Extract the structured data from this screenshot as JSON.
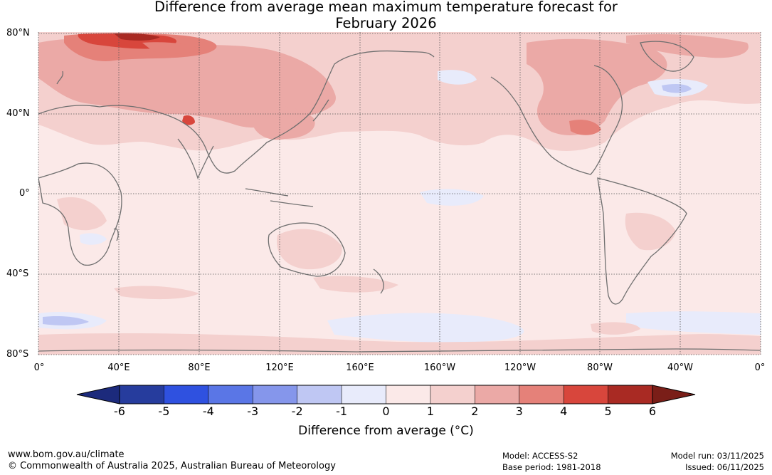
{
  "title": {
    "line1": "Difference from average mean maximum temperature forecast for",
    "line2": "February 2026"
  },
  "map": {
    "lat_labels": [
      "80°N",
      "40°N",
      "0°",
      "40°S",
      "80°S"
    ],
    "lon_labels": [
      "0°",
      "40°E",
      "80°E",
      "120°E",
      "160°E",
      "160°W",
      "120°W",
      "80°W",
      "40°W",
      "0°"
    ]
  },
  "colorbar": {
    "ticks": [
      "-6",
      "-5",
      "-4",
      "-3",
      "-2",
      "-1",
      "0",
      "1",
      "2",
      "3",
      "4",
      "5",
      "6"
    ],
    "colors": [
      "#263c9d",
      "#2f51e0",
      "#5a76e6",
      "#8596eb",
      "#bfc7f3",
      "#e8ebfb",
      "#fbe9e8",
      "#f4d0ce",
      "#eba9a6",
      "#e58179",
      "#d8463c",
      "#a92a23"
    ],
    "low_color": "#1c2a7c",
    "high_color": "#7a1e18",
    "label": "Difference from average (°C)"
  },
  "footer": {
    "url": "www.bom.gov.au/climate",
    "copyright": "© Commonwealth of Australia 2025, Australian Bureau of Meteorology",
    "model": "Model: ACCESS-S2",
    "base_period": "Base period: 1981-2018",
    "model_run": "Model run: 03/11/2025",
    "issued": "Issued: 06/11/2025"
  }
}
